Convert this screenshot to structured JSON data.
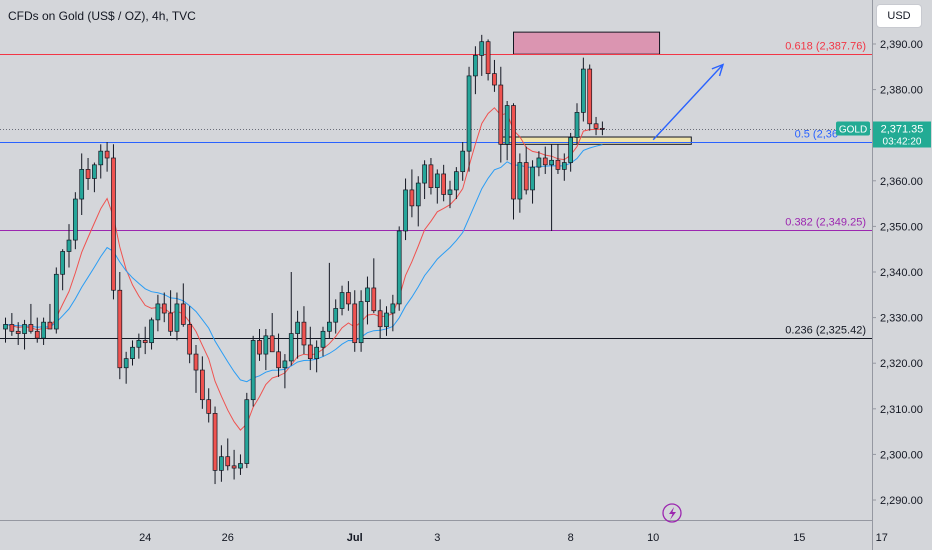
{
  "header": {
    "title": "CFDs on Gold (US$ / OZ), 4h, TVC",
    "currency_button": "USD"
  },
  "price_tag": {
    "symbol": "GOLD",
    "price": "2,371.35",
    "countdown": "03:42:20",
    "value": 2371.35
  },
  "colors": {
    "background": "#d4d6da",
    "up_candle": "#26a69a",
    "down_candle": "#ef5350",
    "ema_fast": "#ef5350",
    "ema_slow": "#2a9df4",
    "fib_618": "#f23645",
    "fib_05": "#2962ff",
    "fib_382": "#9c27b0",
    "fib_236": "#131722",
    "supply_zone": "#e91e63",
    "demand_zone": "#f5e6a3",
    "arrow": "#2962ff",
    "price_tag": "#22ab94"
  },
  "chart_data": {
    "type": "candlestick",
    "symbol": "GOLD",
    "timeframe": "4h",
    "y_axis": {
      "range": [
        2282,
        2398
      ],
      "ticks": [
        2290,
        2300,
        2310,
        2320,
        2330,
        2340,
        2350,
        2360,
        2370,
        2380,
        2390
      ],
      "tick_labels": [
        "2,290.00",
        "2,300.00",
        "2,310.00",
        "2,320.00",
        "2,330.00",
        "2,340.00",
        "2,350.00",
        "2,360.00",
        "2,370.00",
        "2,380.00",
        "2,390.00"
      ]
    },
    "x_axis": {
      "ticks": [
        {
          "label": "24",
          "index": 22
        },
        {
          "label": "26",
          "index": 35
        },
        {
          "label": "Jul",
          "index": 55
        },
        {
          "label": "3",
          "index": 68
        },
        {
          "label": "8",
          "index": 89
        },
        {
          "label": "10",
          "index": 102
        },
        {
          "label": "15",
          "index": 125
        },
        {
          "label": "17",
          "index": 138
        }
      ]
    },
    "candles": [
      [
        2327.5,
        2330.0,
        2324.5,
        2328.5
      ],
      [
        2328.5,
        2331.0,
        2326.0,
        2327.0
      ],
      [
        2327.0,
        2329.0,
        2324.0,
        2326.5
      ],
      [
        2326.5,
        2329.5,
        2323.0,
        2328.5
      ],
      [
        2328.5,
        2333.0,
        2326.5,
        2327.0
      ],
      [
        2327.0,
        2330.0,
        2324.5,
        2325.5
      ],
      [
        2325.5,
        2330.0,
        2324.0,
        2329.0
      ],
      [
        2329.0,
        2333.0,
        2327.5,
        2327.5
      ],
      [
        2327.5,
        2341.0,
        2326.5,
        2339.5
      ],
      [
        2339.5,
        2345.0,
        2336.0,
        2344.5
      ],
      [
        2344.5,
        2350.5,
        2341.0,
        2347.0
      ],
      [
        2347.0,
        2357.5,
        2345.0,
        2356.0
      ],
      [
        2356.0,
        2366.0,
        2352.5,
        2362.5
      ],
      [
        2362.5,
        2365.0,
        2358.0,
        2360.5
      ],
      [
        2360.5,
        2364.0,
        2357.5,
        2363.5
      ],
      [
        2363.5,
        2368.0,
        2360.5,
        2366.5
      ],
      [
        2366.5,
        2368.5,
        2362.0,
        2365.0
      ],
      [
        2365.0,
        2368.0,
        2334.0,
        2336.0
      ],
      [
        2336.0,
        2340.0,
        2316.5,
        2319.0
      ],
      [
        2319.0,
        2322.5,
        2315.5,
        2321.0
      ],
      [
        2321.0,
        2325.0,
        2319.5,
        2323.5
      ],
      [
        2323.5,
        2326.5,
        2321.0,
        2325.0
      ],
      [
        2325.0,
        2328.0,
        2322.0,
        2324.5
      ],
      [
        2324.5,
        2330.0,
        2323.0,
        2329.5
      ],
      [
        2329.5,
        2335.0,
        2327.0,
        2333.0
      ],
      [
        2333.0,
        2335.5,
        2329.0,
        2331.0
      ],
      [
        2331.0,
        2336.0,
        2326.0,
        2327.0
      ],
      [
        2327.0,
        2335.5,
        2325.0,
        2333.0
      ],
      [
        2333.0,
        2337.5,
        2328.0,
        2328.5
      ],
      [
        2328.5,
        2332.5,
        2320.0,
        2322.0
      ],
      [
        2322.0,
        2324.0,
        2313.5,
        2318.5
      ],
      [
        2318.5,
        2321.5,
        2310.0,
        2312.0
      ],
      [
        2312.0,
        2314.5,
        2307.0,
        2309.0
      ],
      [
        2309.0,
        2310.5,
        2293.5,
        2296.5
      ],
      [
        2296.5,
        2302.0,
        2294.0,
        2299.5
      ],
      [
        2299.5,
        2303.5,
        2296.5,
        2297.5
      ],
      [
        2297.5,
        2301.0,
        2294.5,
        2297.0
      ],
      [
        2297.0,
        2300.0,
        2295.5,
        2298.0
      ],
      [
        2298.0,
        2313.5,
        2297.0,
        2312.0
      ],
      [
        2312.0,
        2326.0,
        2310.5,
        2325.0
      ],
      [
        2325.0,
        2327.5,
        2320.5,
        2322.0
      ],
      [
        2322.0,
        2327.5,
        2318.5,
        2326.0
      ],
      [
        2326.0,
        2331.0,
        2322.5,
        2322.5
      ],
      [
        2322.5,
        2326.5,
        2317.0,
        2319.0
      ],
      [
        2319.0,
        2322.0,
        2314.5,
        2320.5
      ],
      [
        2320.5,
        2340.0,
        2319.5,
        2326.5
      ],
      [
        2326.5,
        2331.5,
        2321.0,
        2329.0
      ],
      [
        2329.0,
        2332.5,
        2322.0,
        2324.0
      ],
      [
        2324.0,
        2328.0,
        2318.5,
        2321.0
      ],
      [
        2321.0,
        2325.0,
        2318.0,
        2323.5
      ],
      [
        2323.5,
        2328.0,
        2321.5,
        2327.0
      ],
      [
        2327.0,
        2342.0,
        2325.5,
        2329.0
      ],
      [
        2329.0,
        2334.0,
        2326.5,
        2332.0
      ],
      [
        2332.0,
        2337.0,
        2330.5,
        2335.5
      ],
      [
        2335.5,
        2338.0,
        2331.5,
        2333.0
      ],
      [
        2333.0,
        2336.0,
        2322.5,
        2324.5
      ],
      [
        2324.5,
        2336.0,
        2322.5,
        2333.5
      ],
      [
        2333.5,
        2339.0,
        2328.5,
        2336.5
      ],
      [
        2336.5,
        2343.0,
        2331.0,
        2331.5
      ],
      [
        2331.5,
        2334.0,
        2325.5,
        2328.0
      ],
      [
        2328.0,
        2332.5,
        2326.0,
        2331.0
      ],
      [
        2331.0,
        2335.0,
        2327.0,
        2333.0
      ],
      [
        2333.0,
        2350.0,
        2331.5,
        2349.0
      ],
      [
        2349.0,
        2360.5,
        2347.0,
        2358.0
      ],
      [
        2358.0,
        2362.5,
        2352.0,
        2354.5
      ],
      [
        2354.5,
        2361.0,
        2350.0,
        2359.5
      ],
      [
        2359.5,
        2364.5,
        2356.0,
        2363.5
      ],
      [
        2363.5,
        2365.0,
        2357.0,
        2358.5
      ],
      [
        2358.5,
        2362.5,
        2355.0,
        2361.5
      ],
      [
        2361.5,
        2363.5,
        2355.5,
        2357.0
      ],
      [
        2357.0,
        2360.0,
        2354.0,
        2358.0
      ],
      [
        2358.0,
        2363.0,
        2356.0,
        2362.0
      ],
      [
        2362.0,
        2368.5,
        2360.0,
        2366.5
      ],
      [
        2366.5,
        2385.0,
        2362.0,
        2383.0
      ],
      [
        2383.0,
        2389.5,
        2379.0,
        2387.5
      ],
      [
        2387.5,
        2392.0,
        2383.0,
        2390.5
      ],
      [
        2390.5,
        2391.0,
        2382.0,
        2383.5
      ],
      [
        2383.5,
        2386.5,
        2379.5,
        2381.0
      ],
      [
        2381.0,
        2385.0,
        2364.0,
        2368.0
      ],
      [
        2368.0,
        2377.5,
        2364.5,
        2376.5
      ],
      [
        2376.5,
        2377.0,
        2351.5,
        2356.0
      ],
      [
        2356.0,
        2366.0,
        2353.0,
        2364.0
      ],
      [
        2364.0,
        2367.5,
        2357.0,
        2358.0
      ],
      [
        2358.0,
        2364.5,
        2355.0,
        2363.0
      ],
      [
        2363.0,
        2366.5,
        2361.0,
        2365.0
      ],
      [
        2365.0,
        2367.5,
        2361.5,
        2363.5
      ],
      [
        2363.5,
        2368.0,
        2349.0,
        2364.5
      ],
      [
        2364.5,
        2368.0,
        2361.5,
        2362.5
      ],
      [
        2362.5,
        2366.0,
        2360.0,
        2364.0
      ],
      [
        2364.0,
        2370.5,
        2362.0,
        2369.5
      ],
      [
        2369.5,
        2377.0,
        2368.0,
        2375.0
      ],
      [
        2375.0,
        2387.0,
        2373.0,
        2384.5
      ],
      [
        2384.5,
        2385.5,
        2371.0,
        2372.5
      ],
      [
        2372.5,
        2374.0,
        2370.0,
        2371.5
      ],
      [
        2371.5,
        2373.0,
        2370.0,
        2371.35
      ]
    ],
    "indicators": [
      {
        "type": "EMA",
        "period": 9
      },
      {
        "type": "EMA",
        "period": 21
      }
    ],
    "fibonacci": [
      {
        "level": "0.618",
        "value": 2387.76,
        "label": "0.618 (2,387.76)"
      },
      {
        "level": "0.5",
        "value": 2368.5,
        "label": "0.5 (2,36"
      },
      {
        "level": "0.382",
        "value": 2349.25,
        "label": "0.382 (2,349.25)"
      },
      {
        "level": "0.236",
        "value": 2325.42,
        "label": "0.236 (2,325.42)"
      }
    ],
    "zones": [
      {
        "kind": "supply",
        "from_index": 80,
        "to_index": 103,
        "low": 2387.76,
        "high": 2392.6
      },
      {
        "kind": "demand",
        "from_index": 78,
        "to_index": 108,
        "low": 2368.0,
        "high": 2369.6
      }
    ],
    "projection_arrow": {
      "from_index": 102,
      "from_value": 2369.0,
      "to_index": 113,
      "to_value": 2385.5
    }
  }
}
